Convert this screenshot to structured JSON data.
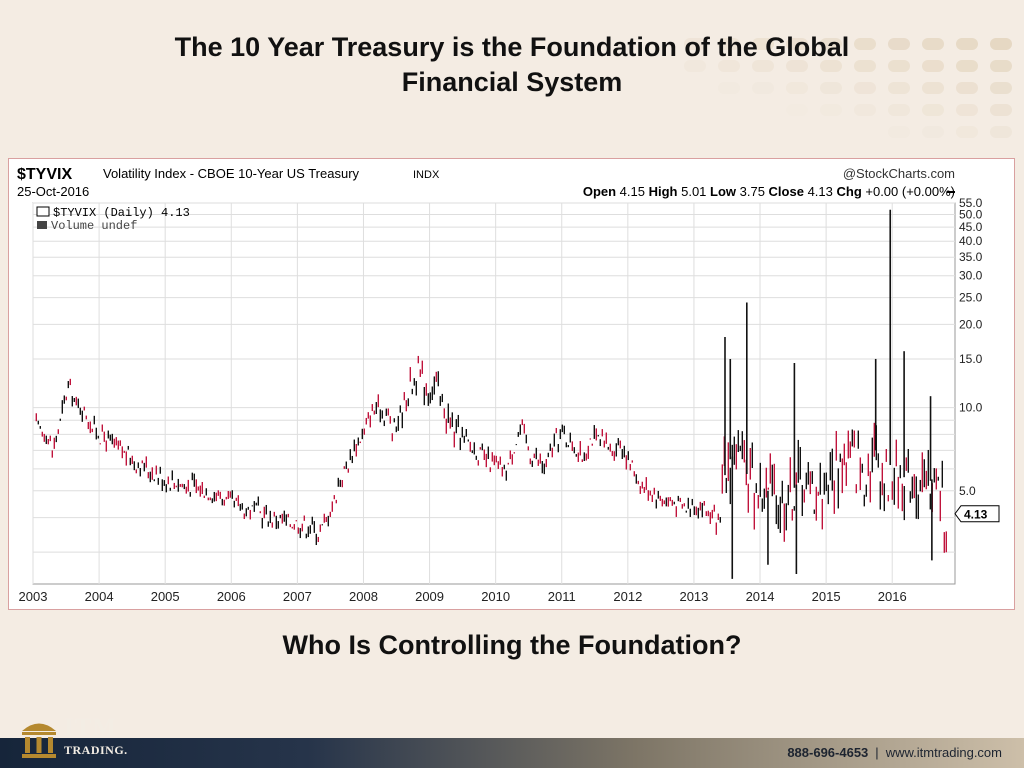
{
  "slide": {
    "title_line1": "The 10 Year Treasury is the Foundation of the Global",
    "title_line2": "Financial System",
    "subtitle": "Who Is Controlling the Foundation?",
    "logo_name": "ITM",
    "logo_sub": "TRADING.",
    "phone": "888-696-4653",
    "separator": "|",
    "website": "www.itmtrading.com"
  },
  "colors": {
    "background": "#f4ece3",
    "price_up": "#111111",
    "price_down": "#c0143c",
    "footer_dark": "#16253a",
    "footer_light": "#cdbfa9",
    "logo_gold": "#b5892f"
  },
  "chart_data": {
    "type": "line",
    "symbol": "$TYVIX",
    "title": "Volatility Index - CBOE 10-Year US Treasury",
    "exchange": "INDX",
    "watermark": "@StockCharts.com",
    "date": "25-Oct-2016",
    "ohlc": {
      "open_label": "Open",
      "open": "4.15",
      "high_label": "High",
      "high": "5.01",
      "low_label": "Low",
      "low": "3.75",
      "close_label": "Close",
      "close": "4.13",
      "chg_label": "Chg",
      "chg": "+0.00 (+0.00%)"
    },
    "legend": {
      "series": "$TYVIX (Daily) 4.13",
      "volume": "Volume undef"
    },
    "last_value_label": "4.13",
    "y_scale": "log",
    "ylim": [
      2.3,
      55
    ],
    "y_ticks": [
      "55.0",
      "50.0",
      "45.0",
      "40.0",
      "35.0",
      "30.0",
      "25.0",
      "20.0",
      "15.0",
      "10.0",
      "5.0"
    ],
    "x_ticks": [
      "2003",
      "2004",
      "2005",
      "2006",
      "2007",
      "2008",
      "2009",
      "2010",
      "2011",
      "2012",
      "2013",
      "2014",
      "2015",
      "2016"
    ],
    "xlim": [
      2003.0,
      2016.95
    ],
    "series": [
      {
        "x": [
          2003.05,
          2003.2,
          2003.3,
          2003.4,
          2003.5,
          2003.55,
          2003.62,
          2003.7,
          2003.8,
          2003.9,
          2004.0,
          2004.15,
          2004.3,
          2004.5,
          2004.7,
          2004.85,
          2005.0,
          2005.15,
          2005.3,
          2005.45,
          2005.6,
          2005.8,
          2006.0,
          2006.2,
          2006.4,
          2006.6,
          2006.8,
          2007.0,
          2007.2,
          2007.35,
          2007.45,
          2007.55,
          2007.65,
          2007.8,
          2007.9,
          2008.0,
          2008.1,
          2008.2,
          2008.35,
          2008.45,
          2008.6,
          2008.75,
          2008.85,
          2008.92,
          2009.0,
          2009.1,
          2009.2,
          2009.3,
          2009.4,
          2009.55,
          2009.7,
          2009.85,
          2010.0,
          2010.15,
          2010.3,
          2010.4,
          2010.5,
          2010.62,
          2010.75,
          2010.9,
          2011.0,
          2011.15,
          2011.3,
          2011.45,
          2011.6,
          2011.75,
          2011.9,
          2012.0,
          2012.15,
          2012.3,
          2012.45,
          2012.6,
          2012.75,
          2012.9,
          2013.0,
          2013.15,
          2013.3,
          2013.4,
          2013.45,
          2013.55,
          2013.65,
          2013.75,
          2013.85,
          2014.0,
          2014.15,
          2014.3,
          2014.45,
          2014.6,
          2014.75,
          2014.9,
          2015.0,
          2015.15,
          2015.3,
          2015.45,
          2015.6,
          2015.75,
          2015.9,
          2016.0,
          2016.15,
          2016.3,
          2016.45,
          2016.6,
          2016.7,
          2016.82
        ],
        "values": [
          8.5,
          8.0,
          7.0,
          8.5,
          11.0,
          12.0,
          10.5,
          10.0,
          9.5,
          8.5,
          8.0,
          7.5,
          7.0,
          6.5,
          6.0,
          5.8,
          5.5,
          5.4,
          5.2,
          5.2,
          5.0,
          4.8,
          4.5,
          4.3,
          4.2,
          4.0,
          3.9,
          3.8,
          3.7,
          3.5,
          4.0,
          4.5,
          5.5,
          6.5,
          7.5,
          8.0,
          9.5,
          10.0,
          9.5,
          8.0,
          10.0,
          12.5,
          13.5,
          12.0,
          11.5,
          12.0,
          10.0,
          9.0,
          8.0,
          7.5,
          7.0,
          6.5,
          6.2,
          5.8,
          7.5,
          8.5,
          7.0,
          6.5,
          6.0,
          7.5,
          8.0,
          7.5,
          6.5,
          7.8,
          7.5,
          7.0,
          7.5,
          6.5,
          5.5,
          5.0,
          4.8,
          4.6,
          4.5,
          4.3,
          4.5,
          4.3,
          4.0,
          3.8,
          5.5,
          6.5,
          7.0,
          6.0,
          5.5,
          5.0,
          5.0,
          4.6,
          4.8,
          5.5,
          5.2,
          5.0,
          5.5,
          6.0,
          6.5,
          6.5,
          6.0,
          7.0,
          5.5,
          6.5,
          5.5,
          6.0,
          5.0,
          5.5,
          5.0,
          4.13
        ]
      }
    ],
    "spikes": [
      {
        "x": 2013.47,
        "value": 18.0
      },
      {
        "x": 2013.55,
        "value": 15.0
      },
      {
        "x": 2013.8,
        "value": 24.0
      },
      {
        "x": 2014.52,
        "value": 14.5
      },
      {
        "x": 2015.75,
        "value": 15.0
      },
      {
        "x": 2015.97,
        "value": 52.0
      },
      {
        "x": 2016.18,
        "value": 16.0
      },
      {
        "x": 2016.58,
        "value": 11.0
      }
    ],
    "dips": [
      {
        "x": 2013.58,
        "value": 2.4
      },
      {
        "x": 2014.12,
        "value": 2.7
      },
      {
        "x": 2014.55,
        "value": 2.5
      },
      {
        "x": 2016.6,
        "value": 2.8
      }
    ]
  }
}
